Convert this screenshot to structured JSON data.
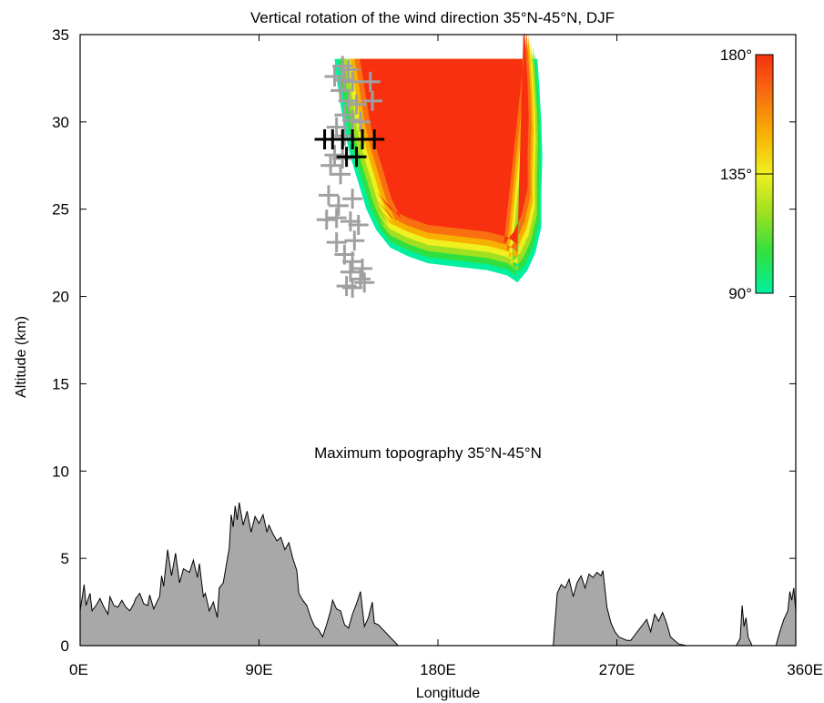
{
  "chart_data": {
    "type": "heatmap",
    "title": "Vertical rotation of the wind direction 35°N-45°N, DJF",
    "xlabel": "Longitude",
    "ylabel": "Altitude (km)",
    "xlim": [
      0,
      360
    ],
    "ylim": [
      0,
      35
    ],
    "x_ticks": [
      {
        "value": 0,
        "label": "0E"
      },
      {
        "value": 90,
        "label": "90E"
      },
      {
        "value": 180,
        "label": "180E"
      },
      {
        "value": 270,
        "label": "270E"
      },
      {
        "value": 360,
        "label": "360E"
      }
    ],
    "y_ticks": [
      {
        "value": 0,
        "label": "0"
      },
      {
        "value": 5,
        "label": "5"
      },
      {
        "value": 10,
        "label": "10"
      },
      {
        "value": 15,
        "label": "15"
      },
      {
        "value": 20,
        "label": "20"
      },
      {
        "value": 25,
        "label": "25"
      },
      {
        "value": 30,
        "label": "30"
      },
      {
        "value": 35,
        "label": "35"
      }
    ],
    "colorbar": {
      "range": [
        90,
        180
      ],
      "ticks": [
        {
          "value": 180,
          "label": "180°"
        },
        {
          "value": 135,
          "label": "135°"
        },
        {
          "value": 90,
          "label": "90°"
        }
      ],
      "colors": [
        "#00f0a0",
        "#30e040",
        "#a0e020",
        "#f0f020",
        "#f8b000",
        "#f87010",
        "#f83010"
      ]
    },
    "rotation_region": {
      "upper_altitude": 33.6,
      "left_edge": [
        [
          33.6,
          128
        ],
        [
          32.5,
          129
        ],
        [
          31,
          131
        ],
        [
          29.5,
          133
        ],
        [
          28,
          136
        ],
        [
          26.5,
          140
        ],
        [
          25,
          144
        ],
        [
          23.8,
          149
        ]
      ],
      "lower_edge": [
        [
          149,
          23.8
        ],
        [
          156,
          22.8
        ],
        [
          165,
          22.3
        ],
        [
          175,
          21.9
        ],
        [
          190,
          21.7
        ],
        [
          205,
          21.5
        ],
        [
          215,
          21.2
        ],
        [
          220,
          20.8
        ]
      ],
      "right_edge": [
        [
          20.8,
          220
        ],
        [
          21.5,
          225
        ],
        [
          22.5,
          229
        ],
        [
          24,
          232
        ],
        [
          26,
          232
        ],
        [
          28,
          232.5
        ],
        [
          30,
          232
        ],
        [
          32,
          231
        ],
        [
          33.6,
          230
        ]
      ]
    },
    "topography_annotation": "Maximum topography 35°N-45°N",
    "topography": {
      "name": "Maximum topography 35°N-45°N",
      "color": "#a8a8a8",
      "x": [
        0,
        2,
        3,
        5,
        6,
        8,
        10,
        12,
        14,
        15,
        17,
        19,
        21,
        23,
        25,
        27,
        28,
        30,
        32,
        34,
        35,
        37,
        39,
        40,
        41,
        42,
        44,
        46,
        48,
        50,
        52,
        55,
        57,
        59,
        60,
        62,
        63,
        65,
        67,
        69,
        70,
        72,
        75,
        76,
        77,
        78,
        79,
        80,
        82,
        84,
        86,
        88,
        90,
        92,
        94,
        95,
        97,
        99,
        101,
        103,
        105,
        107,
        109,
        110,
        112,
        114,
        116,
        118,
        120,
        122,
        124,
        126,
        127,
        129,
        131,
        133,
        135,
        137,
        139,
        141,
        143,
        145,
        147,
        148,
        150,
        160,
        190,
        220,
        238,
        240,
        242,
        244,
        246,
        248,
        250,
        252,
        254,
        256,
        258,
        260,
        262,
        263,
        265,
        267,
        269,
        271,
        273,
        275,
        277,
        279,
        281,
        283,
        285,
        287,
        289,
        291,
        293,
        295,
        297,
        299,
        301,
        305,
        320,
        330,
        332,
        333,
        334,
        335,
        336,
        338,
        340,
        345,
        350,
        352,
        354,
        356,
        357,
        358,
        359,
        360
      ],
      "y": [
        2.0,
        3.5,
        2.3,
        3.0,
        2.0,
        2.3,
        2.7,
        2.2,
        1.8,
        2.8,
        2.3,
        2.2,
        2.6,
        2.2,
        2.0,
        2.4,
        2.7,
        3.0,
        2.4,
        2.3,
        2.9,
        2.1,
        2.6,
        2.8,
        4.0,
        3.4,
        5.5,
        4.0,
        5.3,
        3.6,
        4.4,
        4.2,
        4.9,
        3.9,
        4.7,
        2.8,
        3.0,
        2.0,
        2.5,
        1.6,
        3.3,
        3.6,
        5.6,
        7.5,
        6.8,
        8.0,
        7.2,
        8.2,
        6.9,
        7.7,
        6.5,
        7.4,
        7.0,
        7.5,
        6.5,
        6.9,
        6.4,
        6.0,
        6.2,
        5.5,
        5.9,
        5.0,
        4.3,
        3.0,
        2.6,
        2.3,
        1.6,
        1.1,
        0.9,
        0.5,
        1.2,
        2.0,
        2.6,
        2.1,
        2.0,
        1.2,
        1.0,
        1.8,
        2.4,
        3.1,
        1.1,
        1.6,
        2.5,
        1.3,
        1.2,
        0,
        0,
        0,
        0,
        3.0,
        3.5,
        3.3,
        3.8,
        2.8,
        3.6,
        4.0,
        3.3,
        4.1,
        3.9,
        4.2,
        4.0,
        4.3,
        2.2,
        1.3,
        0.8,
        0.5,
        0.4,
        0.3,
        0.3,
        0.6,
        0.9,
        1.2,
        1.5,
        0.8,
        1.8,
        1.4,
        1.9,
        1.3,
        0.5,
        0.3,
        0.1,
        0,
        0,
        0,
        0.4,
        2.3,
        1.1,
        1.6,
        0.5,
        0,
        0,
        0,
        0,
        0.8,
        1.5,
        2.0,
        3.1,
        2.6,
        3.3,
        2.0
      ],
      "segments": [
        {
          "x": [
            0,
            150
          ],
          "y": [
            2.0,
            1.2
          ]
        },
        {
          "x": [
            238,
            301
          ],
          "y": [
            0,
            0.1
          ]
        },
        {
          "x": [
            330,
            338
          ],
          "y": [
            0,
            0
          ]
        },
        {
          "x": [
            350,
            360
          ],
          "y": [
            0,
            2.0
          ]
        }
      ]
    },
    "gray_markers": [
      [
        132,
        33.2
      ],
      [
        135,
        33
      ],
      [
        128,
        32.6
      ],
      [
        133,
        32.4
      ],
      [
        137,
        32.3
      ],
      [
        131,
        31.8
      ],
      [
        135,
        31.2
      ],
      [
        139,
        31.0
      ],
      [
        146,
        32.3
      ],
      [
        147,
        31.2
      ],
      [
        133,
        30.4
      ],
      [
        137,
        30.1
      ],
      [
        141,
        30.0
      ],
      [
        129,
        29.7
      ],
      [
        133,
        29.2
      ],
      [
        128,
        28.1
      ],
      [
        132,
        27.9
      ],
      [
        126,
        27.5
      ],
      [
        131,
        27.0
      ],
      [
        125,
        25.8
      ],
      [
        130,
        25.2
      ],
      [
        137,
        25.6
      ],
      [
        124,
        24.4
      ],
      [
        129,
        24.5
      ],
      [
        136,
        24.3
      ],
      [
        140,
        24.1
      ],
      [
        129,
        23.1
      ],
      [
        138,
        23.2
      ],
      [
        133,
        22.4
      ],
      [
        137,
        22.0
      ],
      [
        136,
        21.4
      ],
      [
        142,
        21.6
      ],
      [
        141,
        21.0
      ],
      [
        134,
        20.6
      ],
      [
        137,
        20.5
      ],
      [
        143,
        20.8
      ]
    ],
    "black_markers": [
      [
        123,
        29.0
      ],
      [
        127,
        29.0
      ],
      [
        132,
        29.0
      ],
      [
        137,
        29.0
      ],
      [
        142,
        29.0
      ],
      [
        148,
        29.0
      ],
      [
        134,
        28.0
      ],
      [
        139,
        28.0
      ]
    ]
  }
}
